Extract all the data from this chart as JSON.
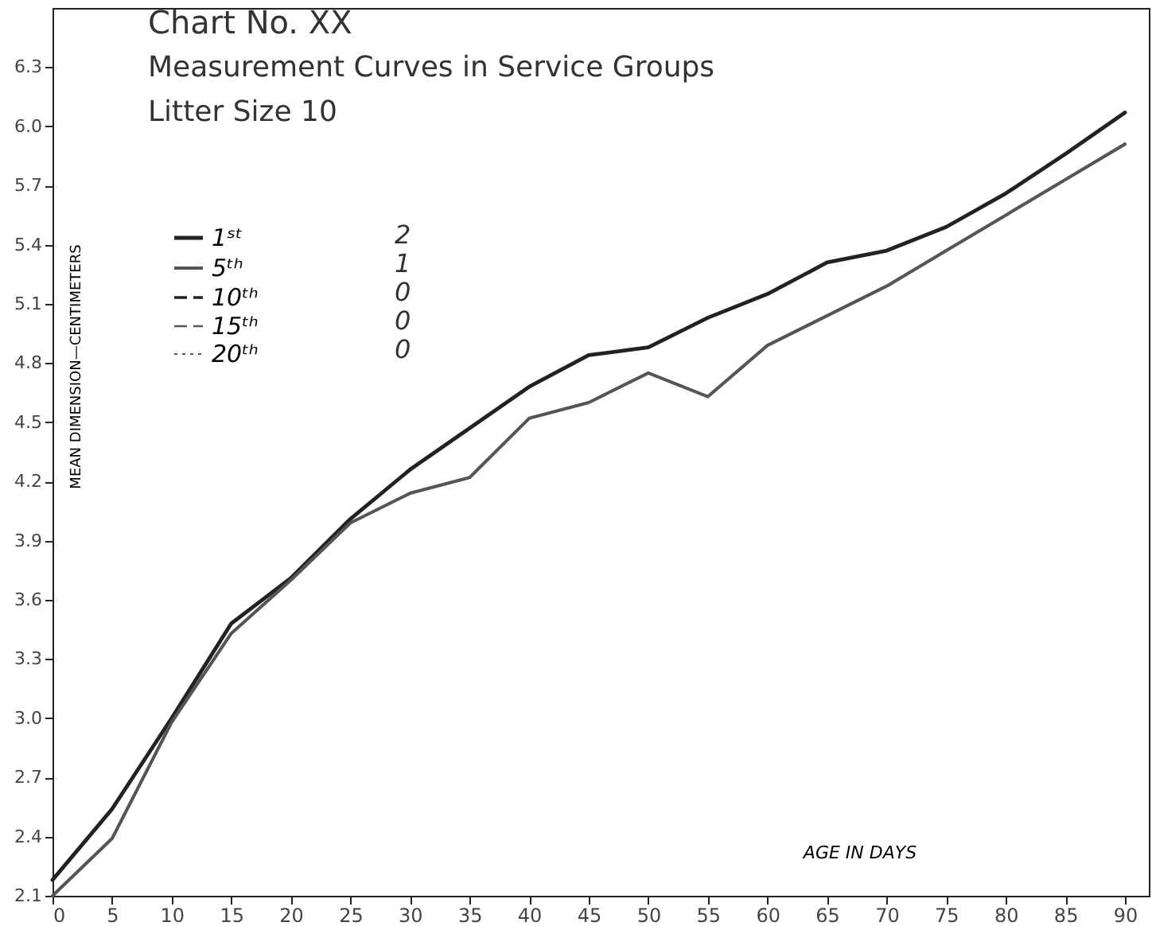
{
  "chart_data": {
    "type": "line",
    "title": "Chart No. XX",
    "subtitle": "Measurement Curves in Service Groups",
    "xlabel": "AGE IN DAYS",
    "ylabel": "MEAN DIMENSION—CENTIMETERS",
    "x": [
      0,
      5,
      10,
      15,
      20,
      25,
      30,
      35,
      40,
      45,
      50,
      55,
      60,
      65,
      70,
      75,
      80,
      85,
      90
    ],
    "series": [
      {
        "name": "1ˢᵗ",
        "color": "#222222",
        "line_style": "solid",
        "values": [
          2.18,
          2.54,
          3.0,
          3.48,
          3.71,
          4.01,
          4.26,
          4.47,
          4.68,
          4.84,
          4.88,
          5.03,
          5.15,
          5.31,
          5.37,
          5.49,
          5.66,
          5.86,
          6.07
        ]
      },
      {
        "name": "5ᵗʰ",
        "color": "#555555",
        "line_style": "solid",
        "values": [
          2.1,
          2.39,
          2.98,
          3.43,
          3.7,
          3.99,
          4.14,
          4.22,
          4.52,
          4.6,
          4.75,
          4.63,
          4.89,
          5.04,
          5.19,
          5.37,
          5.55,
          5.73,
          5.91
        ]
      },
      {
        "name": "10ᵗʰ",
        "color": "#222222",
        "line_style": "dashed",
        "values": [
          null,
          null,
          null,
          null,
          null,
          null,
          null,
          null,
          null,
          null,
          null,
          null,
          null,
          null,
          null,
          null,
          null,
          null,
          null
        ]
      },
      {
        "name": "15ᵗʰ",
        "color": "#555555",
        "line_style": "dashed",
        "values": [
          null,
          null,
          null,
          null,
          null,
          null,
          null,
          null,
          null,
          null,
          null,
          null,
          null,
          null,
          null,
          null,
          null,
          null,
          null
        ]
      },
      {
        "name": "20ᵗʰ",
        "color": "#555555",
        "line_style": "dotted",
        "values": [
          null,
          null,
          null,
          null,
          null,
          null,
          null,
          null,
          null,
          null,
          null,
          null,
          null,
          null,
          null,
          null,
          null,
          null,
          null
        ]
      }
    ],
    "annotations": [
      "Litter Size 10",
      "2",
      "1",
      "0",
      "0",
      "0"
    ],
    "xlim": [
      0,
      92
    ],
    "xticks": [
      0,
      5,
      10,
      15,
      20,
      25,
      30,
      35,
      40,
      45,
      50,
      55,
      60,
      65,
      70,
      75,
      80,
      85,
      90
    ],
    "ylim": [
      2.1,
      6.6
    ],
    "yticks": [
      {
        "value": 2.1,
        "label": "2.1"
      },
      {
        "value": 2.4,
        "label": "2.4"
      },
      {
        "value": 2.7,
        "label": "2.7"
      },
      {
        "value": 3.0,
        "label": "3.0"
      },
      {
        "value": 3.3,
        "label": "3.3"
      },
      {
        "value": 3.6,
        "label": "3.6"
      },
      {
        "value": 3.9,
        "label": "3.9"
      },
      {
        "value": 4.2,
        "label": "4.2"
      },
      {
        "value": 4.5,
        "label": "4.5"
      },
      {
        "value": 4.8,
        "label": "4.8"
      },
      {
        "value": 5.1,
        "label": "5.1"
      },
      {
        "value": 5.4,
        "label": "5.4"
      },
      {
        "value": 5.7,
        "label": "5.7"
      },
      {
        "value": 6.0,
        "label": "6.0"
      },
      {
        "value": 6.3,
        "label": "6.3"
      }
    ],
    "grid": false,
    "legend": "top left",
    "marker": "none"
  }
}
